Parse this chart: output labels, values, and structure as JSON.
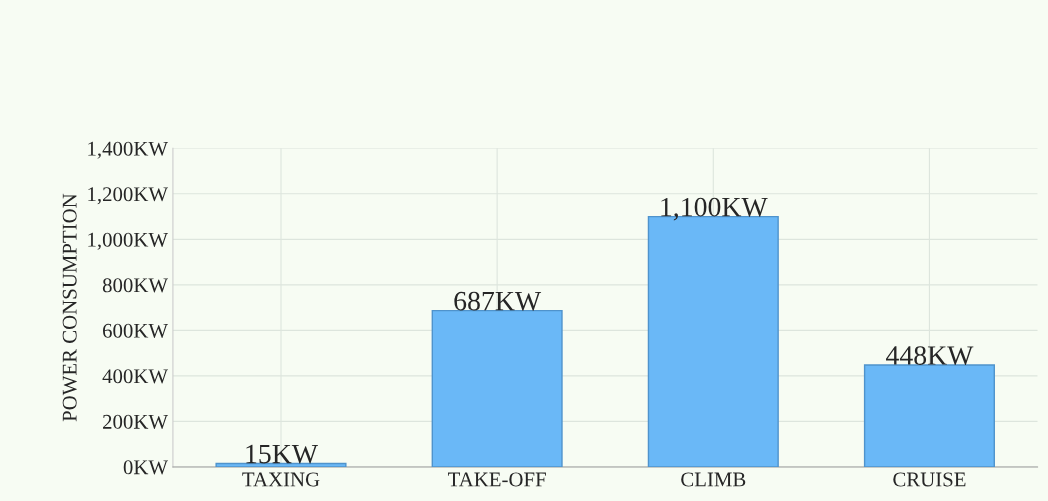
{
  "chart_data": {
    "type": "bar",
    "ylabel": "POWER CONSUMPTION",
    "categories": [
      "TAXING",
      "TAKE-OFF",
      "CLIMB",
      "CRUISE"
    ],
    "values": [
      15,
      687,
      1100,
      448
    ],
    "value_labels": [
      "15KW",
      "687KW",
      "1,100KW",
      "448KW"
    ],
    "color": "#6ab8f7",
    "ylim": [
      0,
      1400
    ],
    "yticks": [
      {
        "value": 0,
        "label": "0KW"
      },
      {
        "value": 200,
        "label": "200KW"
      },
      {
        "value": 400,
        "label": "400KW"
      },
      {
        "value": 600,
        "label": "600KW"
      },
      {
        "value": 800,
        "label": "800KW"
      },
      {
        "value": 1000,
        "label": "1,000KW"
      },
      {
        "value": 1200,
        "label": "1,200KW"
      },
      {
        "value": 1400,
        "label": "1,400KW"
      }
    ],
    "grid": true
  }
}
